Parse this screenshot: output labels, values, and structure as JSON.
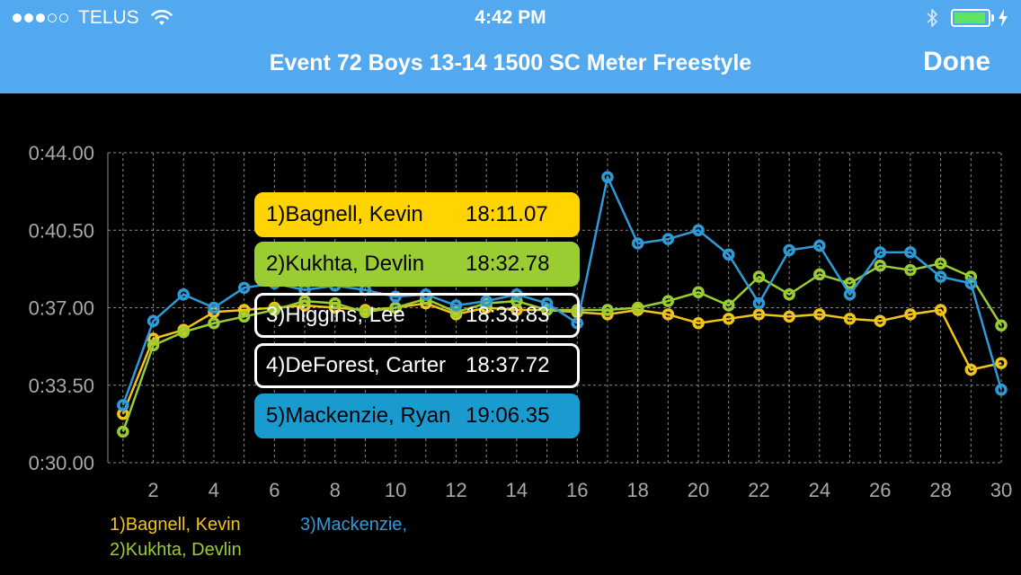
{
  "status_bar": {
    "carrier": "TELUS",
    "time": "4:42 PM",
    "signal_dots_full": 3,
    "signal_dots_total": 5,
    "battery_level": 0.95,
    "battery_color": "#5ee363"
  },
  "header": {
    "title": "Event 72  Boys 13-14 1500 SC Meter Freestyle",
    "done_label": "Done",
    "background": "#52a9ef"
  },
  "tooltip": {
    "rows": [
      {
        "name": "1)Bagnell, Kevin",
        "time": "18:11.07",
        "bg": "#ffd400",
        "fg": "#000000",
        "border": "#ffd400"
      },
      {
        "name": "2)Kukhta, Devlin",
        "time": "18:32.78",
        "bg": "#9acd32",
        "fg": "#000000",
        "border": "#9acd32"
      },
      {
        "name": "3)Higgins, Lee",
        "time": "18:33.83",
        "bg": "rgba(0,0,0,0)",
        "fg": "#ffffff",
        "border": "#ffffff"
      },
      {
        "name": "4)DeForest, Carter",
        "time": "18:37.72",
        "bg": "#000000",
        "fg": "#ffffff",
        "border": "#ffffff"
      },
      {
        "name": "5)Mackenzie, Ryan",
        "time": "19:06.35",
        "bg": "#1a9bd0",
        "fg": "#000000",
        "border": "#1a9bd0"
      }
    ]
  },
  "legend": [
    {
      "label": "1)Bagnell, Kevin",
      "color": "#f0c419"
    },
    {
      "label": "2)Kukhta, Devlin",
      "color": "#9acd32"
    },
    {
      "label": "3)Mackenzie,",
      "color": "#2f9bd6"
    }
  ],
  "chart_data": {
    "type": "line",
    "x": [
      1,
      2,
      3,
      4,
      5,
      6,
      7,
      8,
      9,
      10,
      11,
      12,
      13,
      14,
      15,
      16,
      17,
      18,
      19,
      20,
      21,
      22,
      23,
      24,
      25,
      26,
      27,
      28,
      29,
      30
    ],
    "x_ticks": [
      2,
      4,
      6,
      8,
      10,
      12,
      14,
      16,
      18,
      20,
      22,
      24,
      26,
      28,
      30
    ],
    "x_tick_labels": [
      "2",
      "4",
      "6",
      "8",
      "10",
      "12",
      "14",
      "16",
      "18",
      "20",
      "22",
      "24",
      "26",
      "28",
      "30"
    ],
    "xlim": [
      0.5,
      30
    ],
    "ylim": [
      30.0,
      44.0
    ],
    "y_ticks": [
      30.0,
      33.5,
      37.0,
      40.5,
      44.0
    ],
    "y_tick_labels": [
      "0:30.00",
      "0:33.50",
      "0:37.00",
      "0:40.50",
      "0:44.00"
    ],
    "grid": true,
    "series": [
      {
        "name": "1)Bagnell, Kevin",
        "color": "#f0c419",
        "values": [
          32.2,
          35.6,
          36.0,
          36.8,
          36.9,
          37.0,
          37.1,
          37.0,
          36.9,
          37.0,
          37.2,
          36.7,
          37.0,
          36.9,
          36.9,
          36.8,
          36.7,
          36.9,
          36.7,
          36.3,
          36.5,
          36.7,
          36.6,
          36.7,
          36.5,
          36.4,
          36.7,
          36.9,
          34.2,
          34.5
        ]
      },
      {
        "name": "2)Kukhta, Devlin",
        "color": "#9acd32",
        "values": [
          31.4,
          35.3,
          35.9,
          36.3,
          36.6,
          36.9,
          37.3,
          37.2,
          36.8,
          37.0,
          37.4,
          36.8,
          37.2,
          37.3,
          36.9,
          36.9,
          36.9,
          37.0,
          37.3,
          37.7,
          37.1,
          38.4,
          37.6,
          38.5,
          38.1,
          38.9,
          38.7,
          39.0,
          38.4,
          36.2
        ]
      },
      {
        "name": "3)Mackenzie,",
        "color": "#2f9bd6",
        "values": [
          32.6,
          36.4,
          37.6,
          37.0,
          37.9,
          38.1,
          37.8,
          38.0,
          37.8,
          37.5,
          37.6,
          37.1,
          37.3,
          37.6,
          37.2,
          36.3,
          42.9,
          39.9,
          40.1,
          40.5,
          39.4,
          37.2,
          39.6,
          39.8,
          37.6,
          39.5,
          39.5,
          38.4,
          38.1,
          33.3
        ]
      }
    ]
  }
}
